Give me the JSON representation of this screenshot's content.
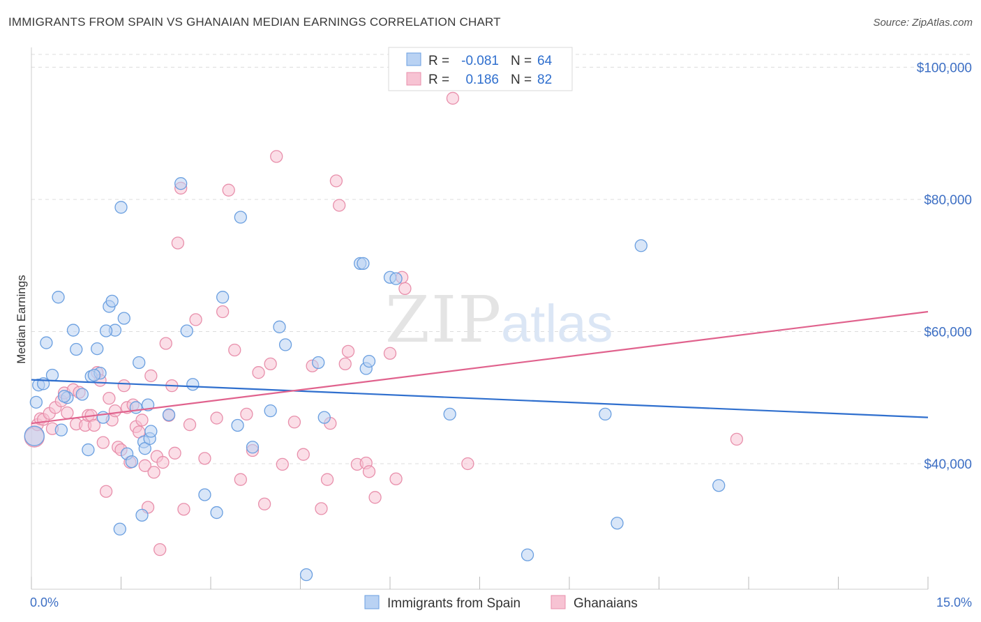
{
  "title": "IMMIGRANTS FROM SPAIN VS GHANAIAN MEDIAN EARNINGS CORRELATION CHART",
  "source": "Source: ZipAtlas.com",
  "watermark": {
    "zip": "ZIP",
    "atlas": "atlas"
  },
  "legend": {
    "rows": [
      {
        "r_label": "R =",
        "r_value": "-0.081",
        "n_label": "N =",
        "n_value": "64"
      },
      {
        "r_label": "R =",
        "r_value": "0.186",
        "n_label": "N =",
        "n_value": "82"
      }
    ]
  },
  "chart_data": {
    "type": "scatter",
    "xlabel": "",
    "ylabel": "Median Earnings",
    "xlim": [
      0,
      15
    ],
    "ylim": [
      21000,
      103000
    ],
    "x_tick_labels": [
      "0.0%",
      "15.0%"
    ],
    "y_ticks": [
      {
        "value": 40000,
        "label": "$40,000"
      },
      {
        "value": 60000,
        "label": "$60,000"
      },
      {
        "value": 80000,
        "label": "$80,000"
      },
      {
        "value": 100000,
        "label": "$100,000"
      }
    ],
    "grid": "horizontal dashed",
    "legend_position": "top-center",
    "series": [
      {
        "name": "Immigrants from Spain",
        "color": "#6a9fe0",
        "fill": "#b9d2f3",
        "trend": {
          "x": [
            0,
            15
          ],
          "y": [
            52700,
            47000
          ],
          "color": "#2f6fce"
        },
        "points": [
          [
            0.05,
            44200
          ],
          [
            0.08,
            49300
          ],
          [
            0.12,
            51900
          ],
          [
            0.2,
            52100
          ],
          [
            0.25,
            58300
          ],
          [
            0.35,
            53400
          ],
          [
            0.45,
            65200
          ],
          [
            0.5,
            45100
          ],
          [
            0.6,
            50000
          ],
          [
            0.7,
            60200
          ],
          [
            0.75,
            57300
          ],
          [
            0.85,
            50500
          ],
          [
            0.95,
            42100
          ],
          [
            1.0,
            53200
          ],
          [
            1.1,
            57400
          ],
          [
            1.15,
            53700
          ],
          [
            1.2,
            47000
          ],
          [
            1.3,
            63800
          ],
          [
            1.35,
            64600
          ],
          [
            1.4,
            60200
          ],
          [
            1.48,
            30100
          ],
          [
            1.5,
            78800
          ],
          [
            1.55,
            62000
          ],
          [
            1.6,
            41500
          ],
          [
            1.68,
            40300
          ],
          [
            1.75,
            48500
          ],
          [
            1.8,
            55300
          ],
          [
            1.85,
            32200
          ],
          [
            1.88,
            43300
          ],
          [
            1.9,
            42300
          ],
          [
            1.95,
            48900
          ],
          [
            1.98,
            43800
          ],
          [
            2.0,
            44900
          ],
          [
            2.3,
            47400
          ],
          [
            2.5,
            82400
          ],
          [
            2.6,
            60100
          ],
          [
            2.7,
            52000
          ],
          [
            2.9,
            35300
          ],
          [
            3.1,
            32600
          ],
          [
            3.2,
            65200
          ],
          [
            3.5,
            77300
          ],
          [
            3.7,
            42500
          ],
          [
            4.0,
            48000
          ],
          [
            4.15,
            60700
          ],
          [
            4.25,
            58000
          ],
          [
            4.6,
            23200
          ],
          [
            4.8,
            55300
          ],
          [
            4.9,
            47000
          ],
          [
            5.5,
            70300
          ],
          [
            5.55,
            70300
          ],
          [
            5.6,
            54400
          ],
          [
            5.65,
            55500
          ],
          [
            3.45,
            45800
          ],
          [
            6.0,
            68200
          ],
          [
            6.1,
            68000
          ],
          [
            7.0,
            47500
          ],
          [
            8.3,
            26200
          ],
          [
            9.6,
            47500
          ],
          [
            9.8,
            31000
          ],
          [
            10.2,
            73000
          ],
          [
            11.5,
            36700
          ],
          [
            0.55,
            50200
          ],
          [
            1.05,
            53400
          ],
          [
            1.25,
            60100
          ]
        ]
      },
      {
        "name": "Ghanaians",
        "color": "#e88fab",
        "fill": "#f7c3d3",
        "trend": {
          "x": [
            0,
            15
          ],
          "y": [
            46100,
            63000
          ],
          "color": "#e0628d"
        },
        "points": [
          [
            0.05,
            44000
          ],
          [
            0.1,
            45900
          ],
          [
            0.15,
            46800
          ],
          [
            0.2,
            46700
          ],
          [
            0.3,
            47600
          ],
          [
            0.35,
            45300
          ],
          [
            0.4,
            48500
          ],
          [
            0.5,
            49500
          ],
          [
            0.55,
            50700
          ],
          [
            0.6,
            47700
          ],
          [
            0.7,
            51200
          ],
          [
            0.75,
            46000
          ],
          [
            0.8,
            50800
          ],
          [
            0.9,
            45800
          ],
          [
            0.95,
            47300
          ],
          [
            1.0,
            47300
          ],
          [
            1.05,
            45800
          ],
          [
            1.1,
            53800
          ],
          [
            1.15,
            52600
          ],
          [
            1.2,
            43200
          ],
          [
            1.25,
            35800
          ],
          [
            1.3,
            49900
          ],
          [
            1.35,
            46600
          ],
          [
            1.4,
            48000
          ],
          [
            1.45,
            42500
          ],
          [
            1.5,
            42100
          ],
          [
            1.55,
            51800
          ],
          [
            1.6,
            48500
          ],
          [
            1.65,
            40200
          ],
          [
            1.7,
            48900
          ],
          [
            1.75,
            45600
          ],
          [
            1.8,
            44800
          ],
          [
            1.85,
            46600
          ],
          [
            1.9,
            39700
          ],
          [
            1.95,
            33400
          ],
          [
            2.0,
            53300
          ],
          [
            2.05,
            38700
          ],
          [
            2.1,
            41100
          ],
          [
            2.15,
            27000
          ],
          [
            2.2,
            40200
          ],
          [
            2.25,
            58200
          ],
          [
            2.3,
            47300
          ],
          [
            2.35,
            51800
          ],
          [
            2.4,
            41600
          ],
          [
            2.45,
            73400
          ],
          [
            2.5,
            81700
          ],
          [
            2.55,
            33100
          ],
          [
            2.65,
            45900
          ],
          [
            2.75,
            61800
          ],
          [
            2.9,
            40800
          ],
          [
            3.1,
            46900
          ],
          [
            3.2,
            63000
          ],
          [
            3.3,
            81400
          ],
          [
            3.4,
            57200
          ],
          [
            3.5,
            37600
          ],
          [
            3.6,
            47500
          ],
          [
            3.7,
            42000
          ],
          [
            3.8,
            53800
          ],
          [
            3.9,
            33900
          ],
          [
            4.0,
            55100
          ],
          [
            4.1,
            86500
          ],
          [
            4.2,
            39900
          ],
          [
            4.4,
            46300
          ],
          [
            4.55,
            41400
          ],
          [
            4.7,
            54800
          ],
          [
            4.85,
            33200
          ],
          [
            4.95,
            37600
          ],
          [
            5.0,
            46100
          ],
          [
            5.1,
            82800
          ],
          [
            5.15,
            79100
          ],
          [
            5.25,
            55100
          ],
          [
            5.3,
            57000
          ],
          [
            5.45,
            39900
          ],
          [
            5.6,
            40100
          ],
          [
            5.65,
            38800
          ],
          [
            5.75,
            34900
          ],
          [
            6.0,
            56700
          ],
          [
            6.1,
            37700
          ],
          [
            6.2,
            68200
          ],
          [
            6.25,
            66500
          ],
          [
            7.05,
            95300
          ],
          [
            7.3,
            40000
          ]
        ]
      }
    ],
    "extra_pink": [
      [
        11.8,
        43700
      ]
    ]
  }
}
